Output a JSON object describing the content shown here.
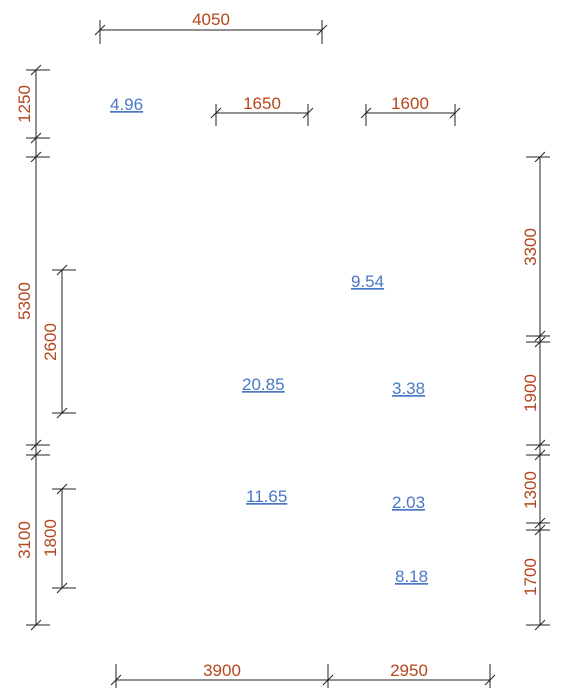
{
  "colors": {
    "dimension_text": "#b5451b",
    "area_text": "#4a78c8",
    "dimension_line": "#222222",
    "background": "#ffffff"
  },
  "dimensions": {
    "top_overall": "4050",
    "top_segment_a": "1650",
    "top_segment_b": "1600",
    "bottom_left": "3900",
    "bottom_right": "2950",
    "left_outer_top": "1250",
    "left_outer_middle": "5300",
    "left_outer_bottom": "3100",
    "left_inner_upper": "2600",
    "left_inner_lower": "1800",
    "right_1": "3300",
    "right_2": "1900",
    "right_3": "1300",
    "right_4": "1700"
  },
  "areas": {
    "a_4_96": "4.96",
    "a_9_54": "9.54",
    "a_20_85": "20.85",
    "a_3_38": "3.38",
    "a_11_65": "11.65",
    "a_2_03": "2.03",
    "a_8_18": "8.18"
  }
}
